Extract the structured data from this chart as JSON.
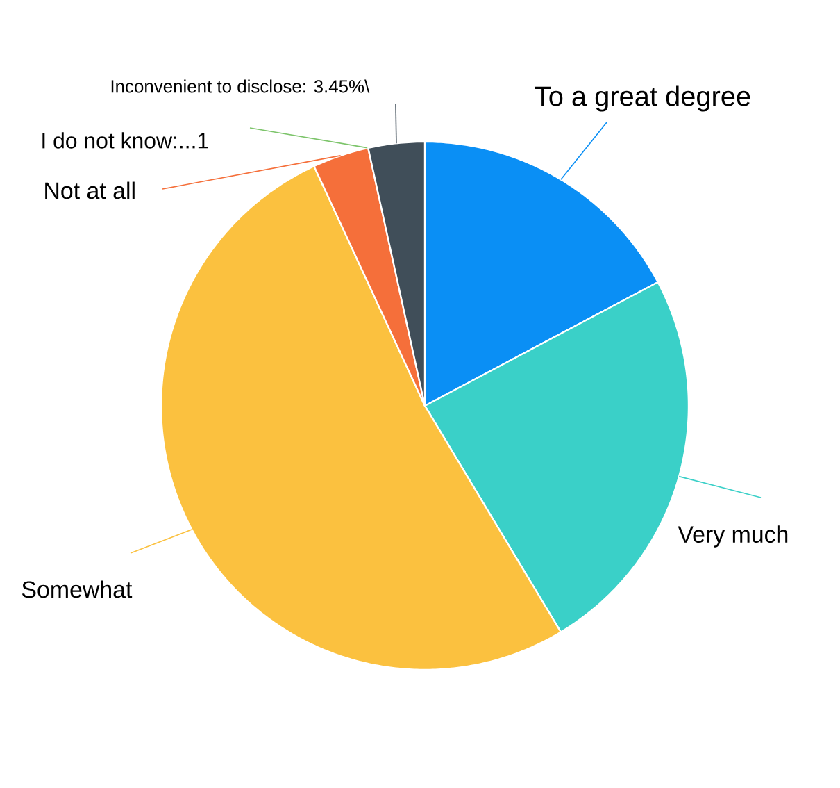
{
  "chart_data": {
    "type": "pie",
    "categories": [
      "To a great degree",
      "Very much",
      "Somewhat",
      "Not at all",
      "I do not know:...1",
      "Inconvenient to disclose: 3.45%\\"
    ],
    "values": [
      17.24,
      24.14,
      51.72,
      3.45,
      0,
      3.45
    ],
    "colors": [
      "#0a8ff5",
      "#3ad0c8",
      "#fbc13f",
      "#f56f3a",
      "#7cc46a",
      "#404e59"
    ]
  }
}
